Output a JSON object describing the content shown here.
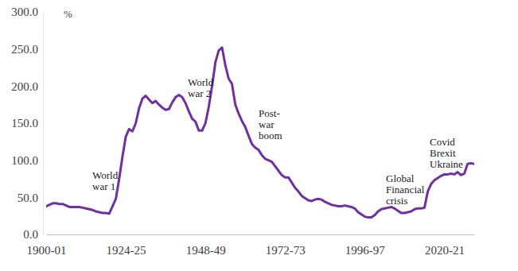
{
  "chart_data": {
    "type": "line",
    "ylabel": "%",
    "color": "#7030a0",
    "categories": [
      "1900-01",
      null,
      null,
      null,
      null,
      null,
      null,
      null,
      null,
      null,
      null,
      null,
      null,
      null,
      null,
      null,
      null,
      null,
      null,
      null,
      null,
      null,
      null,
      null,
      "1924-25",
      null,
      null,
      null,
      null,
      null,
      null,
      null,
      null,
      null,
      null,
      null,
      null,
      null,
      null,
      null,
      null,
      null,
      null,
      null,
      null,
      null,
      null,
      null,
      "1948-49",
      null,
      null,
      null,
      null,
      null,
      null,
      null,
      null,
      null,
      null,
      null,
      null,
      null,
      null,
      null,
      null,
      null,
      null,
      null,
      null,
      null,
      null,
      null,
      "1972-73",
      null,
      null,
      null,
      null,
      null,
      null,
      null,
      null,
      null,
      null,
      null,
      null,
      null,
      null,
      null,
      null,
      null,
      null,
      null,
      null,
      null,
      null,
      null,
      "1996-97",
      null,
      null,
      null,
      null,
      null,
      null,
      null,
      null,
      null,
      null,
      null,
      null,
      null,
      null,
      null,
      null,
      null,
      null,
      null,
      null,
      null,
      null,
      null,
      "2020-21",
      null,
      null,
      null,
      null,
      null,
      null,
      null,
      null,
      null
    ],
    "values": [
      38,
      40,
      42,
      42,
      41,
      41,
      39,
      37,
      37,
      37,
      37,
      36,
      35,
      34,
      33,
      31,
      30,
      29,
      29,
      28,
      38,
      48,
      75,
      105,
      132,
      142,
      139,
      150,
      170,
      183,
      187,
      182,
      177,
      180,
      175,
      171,
      168,
      169,
      178,
      185,
      188,
      185,
      177,
      166,
      156,
      152,
      140,
      140,
      150,
      172,
      200,
      232,
      248,
      252,
      228,
      210,
      203,
      175,
      163,
      153,
      145,
      133,
      122,
      117,
      114,
      107,
      102,
      100,
      98,
      92,
      86,
      80,
      77,
      77,
      70,
      63,
      58,
      52,
      49,
      46,
      45,
      47,
      48,
      47,
      44,
      42,
      40,
      39,
      38,
      38,
      39,
      38,
      37,
      35,
      30,
      27,
      24,
      23,
      23,
      26,
      31,
      34,
      35,
      36,
      37,
      35,
      32,
      29,
      29,
      30,
      31,
      34,
      35,
      35,
      36,
      58,
      68,
      73,
      76,
      79,
      81,
      81,
      82,
      81,
      84,
      80,
      82,
      95,
      96,
      95
    ],
    "ylim": [
      0,
      300
    ],
    "yticks": [
      {
        "value": 0,
        "label": "0.0"
      },
      {
        "value": 50,
        "label": "50.0"
      },
      {
        "value": 100,
        "label": "100.0"
      },
      {
        "value": 150,
        "label": "150.0"
      },
      {
        "value": 200,
        "label": "200.0"
      },
      {
        "value": 250,
        "label": "250.0"
      },
      {
        "value": 300,
        "label": "300.0"
      }
    ],
    "grid": false,
    "annotations": [
      {
        "text": [
          "World",
          "war 1"
        ]
      },
      {
        "text": [
          "World",
          "war 2"
        ]
      },
      {
        "text": [
          "Post-",
          "war",
          "boom"
        ]
      },
      {
        "text": [
          "Global",
          "Financial",
          "crisis"
        ]
      },
      {
        "text": [
          "Covid",
          "Brexit",
          "Ukraine"
        ]
      }
    ]
  }
}
